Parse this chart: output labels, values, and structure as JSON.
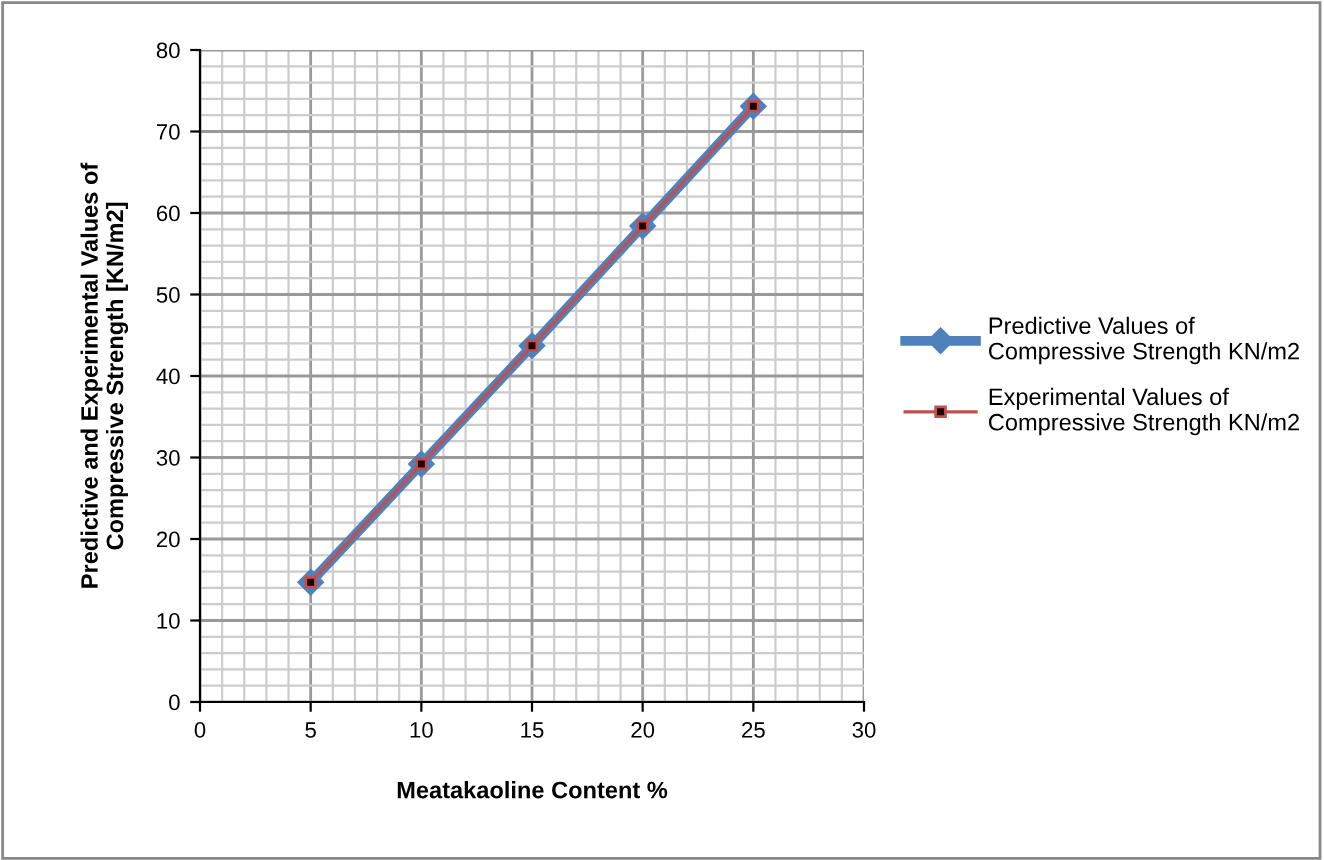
{
  "chart_data": {
    "type": "line",
    "xlabel": "Meatakaoline Content %",
    "ylabel": "Predictive and Experimental Values of\nCompressive Strength [KN/m2]",
    "x": [
      5,
      10,
      15,
      20,
      25
    ],
    "series": [
      {
        "name": "Predictive Values of\nCompressive Strength KN/m2",
        "color": "#4f81bd",
        "values": [
          14.7,
          29.2,
          43.7,
          58.4,
          73.1
        ],
        "marker": "diamond"
      },
      {
        "name": "Experimental Values of\nCompressive Strength KN/m2",
        "color": "#c0504d",
        "values": [
          14.7,
          29.2,
          43.7,
          58.4,
          73.1
        ],
        "marker": "square"
      }
    ],
    "xlim": [
      0,
      30
    ],
    "xticks": [
      0,
      5,
      10,
      15,
      20,
      25,
      30
    ],
    "ylim": [
      0,
      80
    ],
    "yticks": [
      0,
      10,
      20,
      30,
      40,
      50,
      60,
      70,
      80
    ],
    "grid": true,
    "legend": "right",
    "line_style": "solid"
  }
}
